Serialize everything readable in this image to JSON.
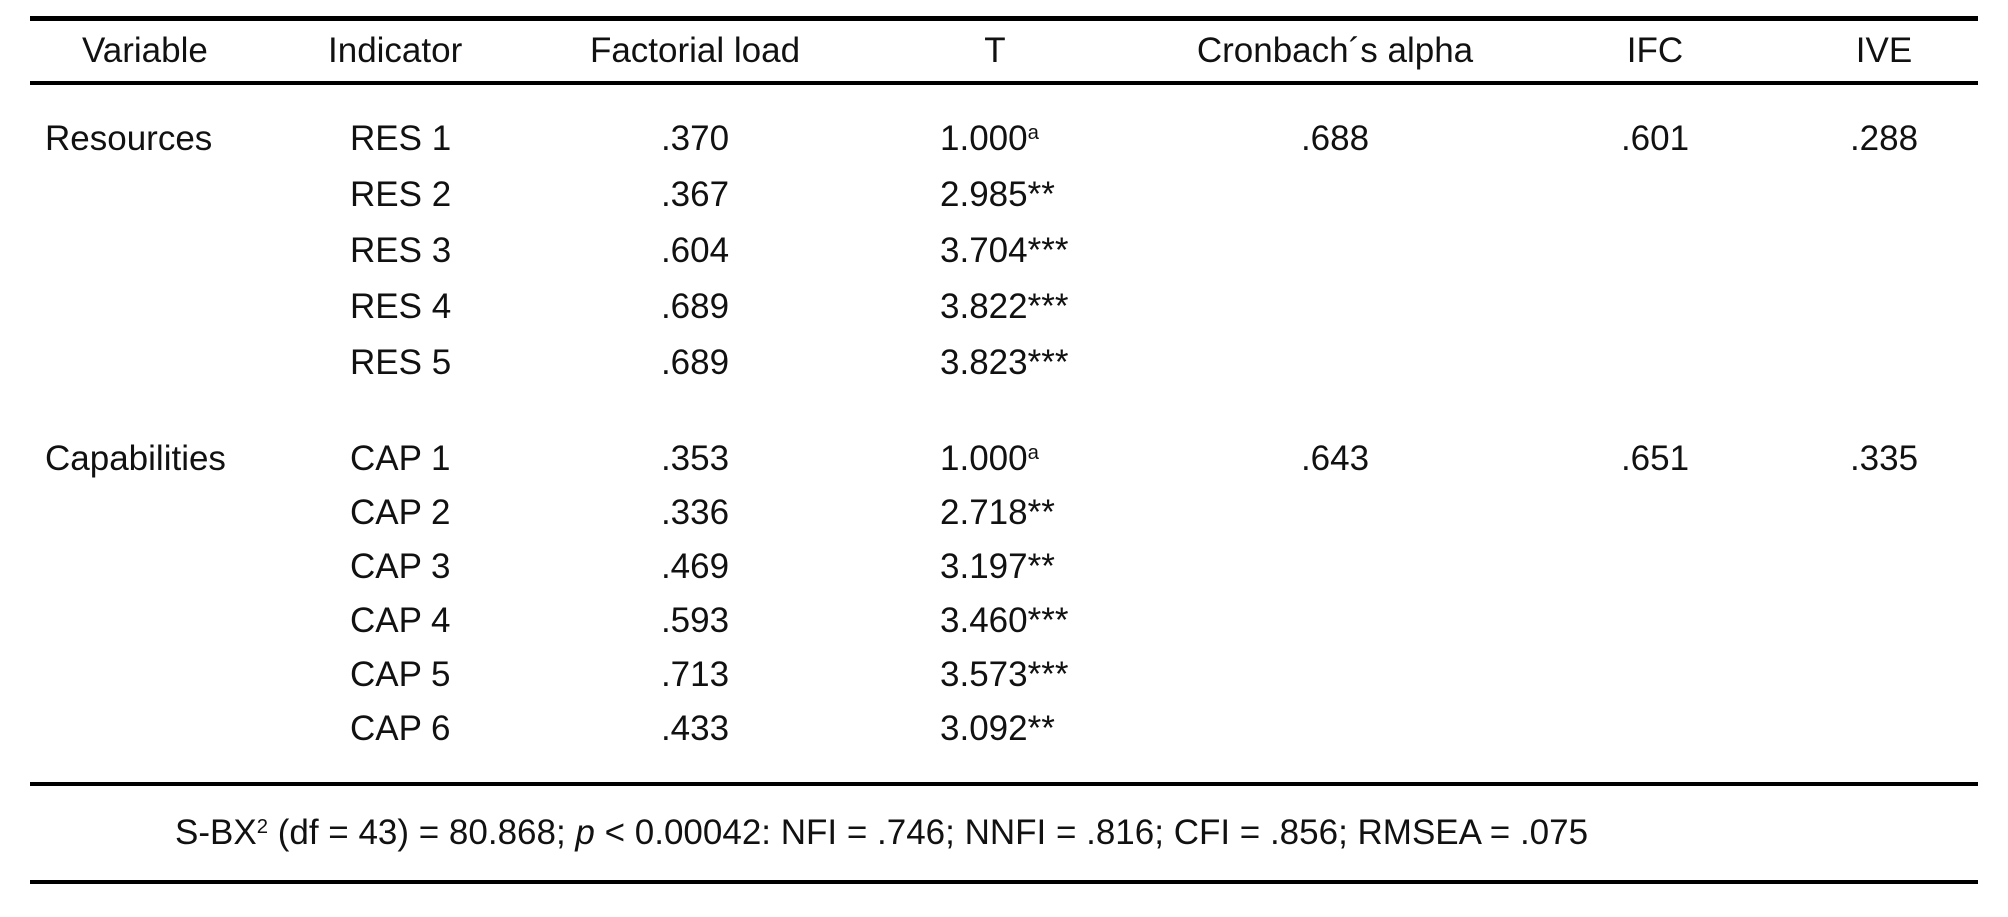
{
  "colors": {
    "background": "#ffffff",
    "text": "#111111",
    "rule_lines": "#000000"
  },
  "table": {
    "columns": {
      "variable": "Variable",
      "indicator": "Indicator",
      "factorial_load": "Factorial load",
      "t": "T",
      "cronbach_alpha": "Cronbach´s alpha",
      "ifc": "IFC",
      "ive": "IVE"
    },
    "rows": [
      {
        "variable": "Resources",
        "indicator": "RES 1",
        "load": ".370",
        "t": "1.000",
        "t_sup": "a",
        "alpha": ".688",
        "ifc": ".601",
        "ive": ".288"
      },
      {
        "variable": "",
        "indicator": "RES 2",
        "load": ".367",
        "t": "2.985**",
        "t_sup": "",
        "alpha": "",
        "ifc": "",
        "ive": ""
      },
      {
        "variable": "",
        "indicator": "RES 3",
        "load": ".604",
        "t": "3.704***",
        "t_sup": "",
        "alpha": "",
        "ifc": "",
        "ive": ""
      },
      {
        "variable": "",
        "indicator": "RES 4",
        "load": ".689",
        "t": "3.822***",
        "t_sup": "",
        "alpha": "",
        "ifc": "",
        "ive": ""
      },
      {
        "variable": "",
        "indicator": "RES 5",
        "load": ".689",
        "t": "3.823***",
        "t_sup": "",
        "alpha": "",
        "ifc": "",
        "ive": ""
      },
      {
        "variable": "Capabilities",
        "indicator": "CAP 1",
        "load": ".353",
        "t": "1.000",
        "t_sup": "a",
        "alpha": ".643",
        "ifc": ".651",
        "ive": ".335"
      },
      {
        "variable": "",
        "indicator": "CAP 2",
        "load": ".336",
        "t": "2.718**",
        "t_sup": "",
        "alpha": "",
        "ifc": "",
        "ive": ""
      },
      {
        "variable": "",
        "indicator": "CAP 3",
        "load": ".469",
        "t": "3.197**",
        "t_sup": "",
        "alpha": "",
        "ifc": "",
        "ive": ""
      },
      {
        "variable": "",
        "indicator": "CAP 4",
        "load": ".593",
        "t": "3.460***",
        "t_sup": "",
        "alpha": "",
        "ifc": "",
        "ive": ""
      },
      {
        "variable": "",
        "indicator": "CAP 5",
        "load": ".713",
        "t": "3.573***",
        "t_sup": "",
        "alpha": "",
        "ifc": "",
        "ive": ""
      },
      {
        "variable": "",
        "indicator": "CAP 6",
        "load": ".433",
        "t": "3.092**",
        "t_sup": "",
        "alpha": "",
        "ifc": "",
        "ive": ""
      }
    ],
    "footer": {
      "part1": "S-BX",
      "sup": "2",
      "part2": " (df = 43) = 80.868; ",
      "italic_p": "p",
      "part3": " < 0.00042: NFI = .746; NNFI = .816; CFI = .856; RMSEA = .075"
    }
  }
}
